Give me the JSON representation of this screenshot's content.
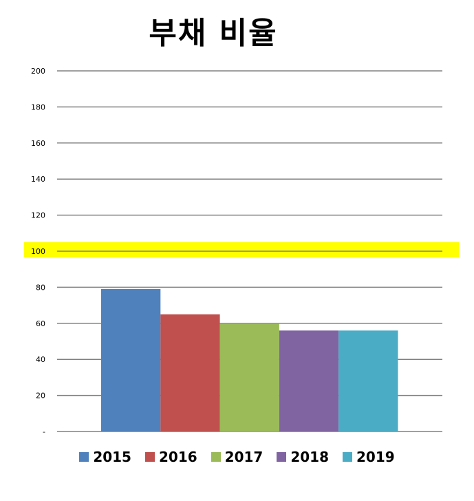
{
  "chart_data": {
    "type": "bar",
    "title": "부채 비율",
    "xlabel": "",
    "ylabel": "",
    "ylim": [
      0,
      200
    ],
    "y_ticks": [
      "-",
      "20",
      "40",
      "60",
      "80",
      "100",
      "120",
      "140",
      "160",
      "180",
      "200"
    ],
    "grid": true,
    "legend_position": "bottom",
    "highlight_value": 100,
    "highlight_color": "#ffff00",
    "series": [
      {
        "name": "2015",
        "values": [
          79
        ],
        "color": "#4f81bd"
      },
      {
        "name": "2016",
        "values": [
          65
        ],
        "color": "#c0504d"
      },
      {
        "name": "2017",
        "values": [
          60
        ],
        "color": "#9bbb59"
      },
      {
        "name": "2018",
        "values": [
          56
        ],
        "color": "#8064a2"
      },
      {
        "name": "2019",
        "values": [
          56
        ],
        "color": "#4bacc6"
      }
    ]
  }
}
